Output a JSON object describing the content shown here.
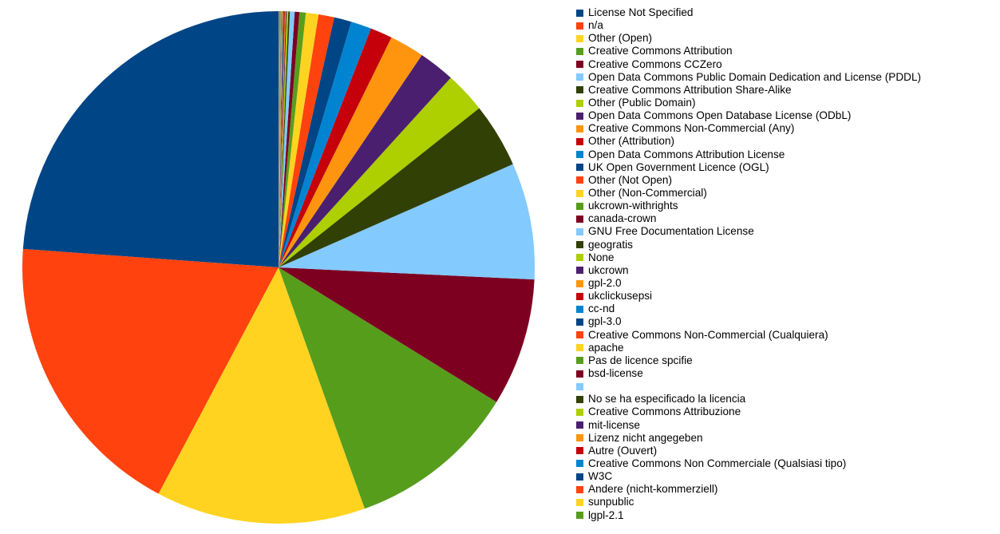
{
  "chart_data": {
    "type": "pie",
    "title": "",
    "legend_position": "right",
    "palette": [
      "#004586",
      "#ff420e",
      "#ffd320",
      "#579d1c",
      "#7e0021",
      "#83caff",
      "#314004",
      "#aecf00",
      "#4b1f6f",
      "#ff950e",
      "#c5000b",
      "#0084d1"
    ],
    "slices": [
      {
        "label": "License Not Specified",
        "value": 24.0
      },
      {
        "label": "n/a",
        "value": 18.5
      },
      {
        "label": "Other (Open)",
        "value": 13.3
      },
      {
        "label": "Creative Commons Attribution",
        "value": 10.8
      },
      {
        "label": "Creative Commons CCZero",
        "value": 8.1
      },
      {
        "label": "Open Data Commons Public Domain Dedication and License (PDDL)",
        "value": 7.4
      },
      {
        "label": "Creative Commons Attribution Share-Alike",
        "value": 4.1
      },
      {
        "label": "Other (Public Domain)",
        "value": 2.6
      },
      {
        "label": "Open Data Commons Open Database License (ODbL)",
        "value": 2.3
      },
      {
        "label": "Creative Commons Non-Commercial (Any)",
        "value": 2.2
      },
      {
        "label": "Other (Attribution)",
        "value": 1.4
      },
      {
        "label": "Open Data Commons Attribution License",
        "value": 1.3
      },
      {
        "label": "UK Open Government Licence (OGL)",
        "value": 1.1
      },
      {
        "label": "Other (Not Open)",
        "value": 1.0
      },
      {
        "label": "Other (Non-Commercial)",
        "value": 0.8
      },
      {
        "label": "ukcrown-withrights",
        "value": 0.4
      },
      {
        "label": "canada-crown",
        "value": 0.3
      },
      {
        "label": "GNU Free Documentation License",
        "value": 0.3
      },
      {
        "label": "geogratis",
        "value": 0.1
      },
      {
        "label": "None",
        "value": 0.1
      },
      {
        "label": "ukcrown",
        "value": 0.06
      },
      {
        "label": "gpl-2.0",
        "value": 0.05
      },
      {
        "label": "ukclickusepsi",
        "value": 0.05
      },
      {
        "label": "cc-nd",
        "value": 0.04
      },
      {
        "label": "gpl-3.0",
        "value": 0.04
      },
      {
        "label": "Creative Commons Non-Commercial (Cualquiera)",
        "value": 0.03
      },
      {
        "label": "apache",
        "value": 0.03
      },
      {
        "label": "Pas de licence spcifie",
        "value": 0.03
      },
      {
        "label": "bsd-license",
        "value": 0.02
      },
      {
        "label": "",
        "value": 0.02
      },
      {
        "label": "No se ha especificado la licencia",
        "value": 0.02
      },
      {
        "label": "Creative Commons Attribuzione",
        "value": 0.02
      },
      {
        "label": "mit-license",
        "value": 0.02
      },
      {
        "label": "Lizenz nicht angegeben",
        "value": 0.02
      },
      {
        "label": "Autre (Ouvert)",
        "value": 0.01
      },
      {
        "label": "Creative Commons Non Commerciale (Qualsiasi tipo)",
        "value": 0.01
      },
      {
        "label": "W3C",
        "value": 0.01
      },
      {
        "label": "Andere (nicht-kommerziell)",
        "value": 0.01
      },
      {
        "label": "sunpublic",
        "value": 0.01
      },
      {
        "label": "lgpl-2.1",
        "value": 0.01
      }
    ]
  }
}
